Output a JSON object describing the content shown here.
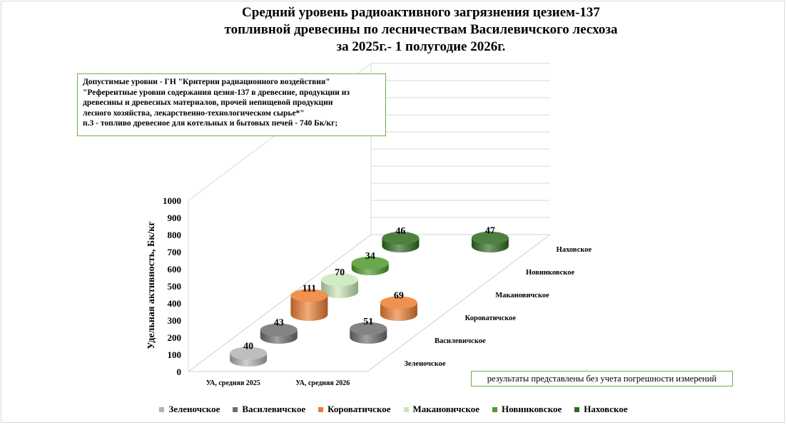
{
  "chart_data": {
    "type": "bar",
    "title_lines": [
      "Средний уровень радиоактивного загрязнения цезием-137",
      "топливной древесины по лесничествам Василевичского лесхоза",
      "за 2025г.- 1 полугодие 2026г."
    ],
    "ylabel": "Удельная активность, Бк/кг",
    "ylim": [
      0,
      1000
    ],
    "yticks": [
      "0",
      "100",
      "200",
      "300",
      "400",
      "500",
      "600",
      "700",
      "800",
      "900",
      "1000"
    ],
    "categories": [
      "УА, средняя 2025",
      "УА, средняя 2026"
    ],
    "series": [
      {
        "name": "Зеленочское",
        "values": [
          40,
          null
        ],
        "color": "#b3b3b3"
      },
      {
        "name": "Василевичское",
        "values": [
          43,
          51
        ],
        "color": "#6e6e6e"
      },
      {
        "name": "Короватичское",
        "values": [
          111,
          69
        ],
        "color": "#ed7d31"
      },
      {
        "name": "Макановичское",
        "values": [
          70,
          null
        ],
        "color": "#c9e7b8"
      },
      {
        "name": "Новинковское",
        "values": [
          34,
          null
        ],
        "color": "#4e9a2c"
      },
      {
        "name": "Наховское",
        "values": [
          46,
          47
        ],
        "color": "#2f6b1e"
      }
    ],
    "grid": true,
    "legend_position": "bottom"
  },
  "annotation_box": {
    "lines": [
      "Допустимые уровни - ГН \"Критерии радиационного воздействия\"",
      "\"Референтные уровни содержания цезия-137 в древесине, продукции из",
      "древесины и древесных материалов, прочей непищевой продукции",
      "лесного хозяйства,  лекарственно-технологическом сырье*\"",
      "п.3 - топливо древесное для котельных и бытовых печей - 740 Бк/кг;"
    ]
  },
  "footnote": "результаты представлены без учета погрешности измерений"
}
